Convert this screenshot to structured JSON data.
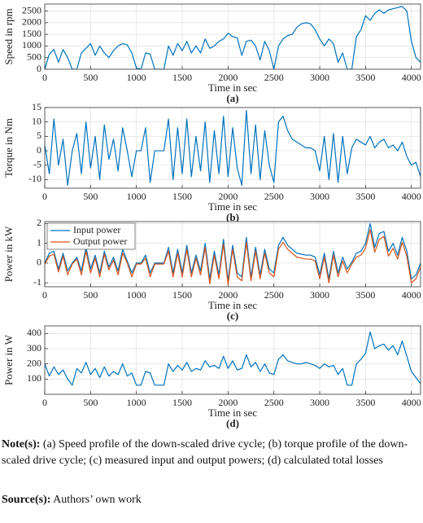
{
  "chart_data": [
    {
      "type": "line",
      "caption": "(a)",
      "y_label": "Speed in rpm",
      "x_label": "Time in sec",
      "x": [
        0,
        50,
        100,
        150,
        200,
        250,
        300,
        350,
        400,
        450,
        500,
        550,
        600,
        650,
        700,
        750,
        800,
        850,
        900,
        950,
        1000,
        1050,
        1100,
        1150,
        1200,
        1250,
        1300,
        1350,
        1400,
        1450,
        1500,
        1550,
        1600,
        1650,
        1700,
        1750,
        1800,
        1850,
        1900,
        1950,
        2000,
        2050,
        2100,
        2150,
        2200,
        2250,
        2300,
        2350,
        2400,
        2450,
        2500,
        2550,
        2600,
        2650,
        2700,
        2750,
        2800,
        2850,
        2900,
        2950,
        3000,
        3050,
        3100,
        3150,
        3200,
        3250,
        3300,
        3350,
        3400,
        3450,
        3500,
        3550,
        3600,
        3650,
        3700,
        3750,
        3800,
        3850,
        3900,
        3950,
        4000,
        4050,
        4100
      ],
      "values": [
        0,
        650,
        850,
        300,
        850,
        500,
        0,
        0,
        700,
        900,
        1100,
        600,
        1000,
        700,
        500,
        800,
        1000,
        1100,
        1050,
        700,
        50,
        0,
        700,
        650,
        0,
        0,
        0,
        1000,
        600,
        1100,
        800,
        1200,
        700,
        1000,
        700,
        1300,
        900,
        1000,
        1200,
        1300,
        1550,
        1400,
        1350,
        600,
        1200,
        1250,
        1000,
        400,
        1200,
        800,
        0,
        1000,
        1300,
        1450,
        1500,
        1800,
        1950,
        2000,
        1950,
        1700,
        1300,
        1000,
        1300,
        1100,
        300,
        700,
        0,
        0,
        1400,
        1700,
        2300,
        2100,
        2400,
        2550,
        2400,
        2550,
        2600,
        2650,
        2700,
        2500,
        1200,
        500,
        300
      ],
      "color": "#0072bd",
      "xlim": [
        0,
        4100
      ],
      "ylim": [
        0,
        2800
      ],
      "xticks": [
        0,
        500,
        1000,
        1500,
        2000,
        2500,
        3000,
        3500,
        4000
      ],
      "yticks": [
        0,
        500,
        1000,
        1500,
        2000,
        2500
      ],
      "grid": true
    },
    {
      "type": "line",
      "caption": "(b)",
      "y_label": "Torque in Nm",
      "x_label": "Time in sec",
      "x": [
        0,
        50,
        100,
        150,
        200,
        250,
        300,
        350,
        400,
        450,
        500,
        550,
        600,
        650,
        700,
        750,
        800,
        850,
        900,
        950,
        1000,
        1050,
        1100,
        1150,
        1200,
        1250,
        1300,
        1350,
        1400,
        1450,
        1500,
        1550,
        1600,
        1650,
        1700,
        1750,
        1800,
        1850,
        1900,
        1950,
        2000,
        2050,
        2100,
        2150,
        2200,
        2250,
        2300,
        2350,
        2400,
        2450,
        2500,
        2550,
        2600,
        2650,
        2700,
        2750,
        2800,
        2850,
        2900,
        2950,
        3000,
        3050,
        3100,
        3150,
        3200,
        3250,
        3300,
        3350,
        3400,
        3450,
        3500,
        3550,
        3600,
        3650,
        3700,
        3750,
        3800,
        3850,
        3900,
        3950,
        4000,
        4050,
        4100
      ],
      "values": [
        2,
        -8,
        11,
        -5,
        4,
        -12,
        0,
        6,
        -8,
        10,
        -6,
        5,
        -10,
        9,
        -3,
        4,
        -7,
        8,
        0,
        -9,
        0,
        0,
        8,
        -11,
        0,
        0,
        0,
        11,
        -10,
        8,
        -8,
        11,
        -9,
        5,
        -7,
        10,
        -11,
        7,
        -8,
        12,
        -9,
        8,
        -6,
        -12,
        14,
        -8,
        9,
        -10,
        7,
        -5,
        -11,
        10,
        12,
        7,
        4,
        3,
        2,
        1,
        1,
        0,
        -7,
        5,
        -10,
        6,
        -11,
        5,
        -8,
        1,
        4,
        3,
        2,
        5,
        1,
        3,
        4,
        1,
        2,
        0,
        3,
        -2,
        -5,
        -4,
        -9
      ],
      "color": "#0072bd",
      "xlim": [
        0,
        4100
      ],
      "ylim": [
        -13,
        15
      ],
      "xticks": [
        0,
        500,
        1000,
        1500,
        2000,
        2500,
        3000,
        3500,
        4000
      ],
      "yticks": [
        -10,
        -5,
        0,
        5,
        10,
        15
      ],
      "grid": true
    },
    {
      "type": "line",
      "caption": "(c)",
      "y_label": "Power in kW",
      "x_label": "Time in sec",
      "x": [
        0,
        50,
        100,
        150,
        200,
        250,
        300,
        350,
        400,
        450,
        500,
        550,
        600,
        650,
        700,
        750,
        800,
        850,
        900,
        950,
        1000,
        1050,
        1100,
        1150,
        1200,
        1250,
        1300,
        1350,
        1400,
        1450,
        1500,
        1550,
        1600,
        1650,
        1700,
        1750,
        1800,
        1850,
        1900,
        1950,
        2000,
        2050,
        2100,
        2150,
        2200,
        2250,
        2300,
        2350,
        2400,
        2450,
        2500,
        2550,
        2600,
        2650,
        2700,
        2750,
        2800,
        2850,
        2900,
        2950,
        3000,
        3050,
        3100,
        3150,
        3200,
        3250,
        3300,
        3350,
        3400,
        3450,
        3500,
        3550,
        3600,
        3650,
        3700,
        3750,
        3800,
        3850,
        3900,
        3950,
        4000,
        4050,
        4100
      ],
      "series": [
        {
          "name": "Input power",
          "color": "#0072bd",
          "values": [
            0,
            0.5,
            0.6,
            -0.3,
            0.5,
            -0.4,
            0,
            0.3,
            -0.4,
            0.8,
            -0.3,
            0.4,
            -0.5,
            0.6,
            -0.2,
            0.3,
            -0.4,
            0.7,
            0.1,
            -0.5,
            0,
            0,
            0.4,
            -0.5,
            0,
            0,
            0,
            0.8,
            -0.5,
            0.7,
            -0.5,
            0.9,
            -0.5,
            0.4,
            -0.4,
            1.0,
            -0.8,
            0.6,
            -0.6,
            1.2,
            -0.9,
            0.9,
            -0.5,
            -0.7,
            1.3,
            -0.7,
            0.8,
            -0.6,
            0.7,
            -0.3,
            -0.5,
            0.9,
            1.3,
            0.9,
            0.7,
            0.5,
            0.45,
            0.4,
            0.4,
            0.3,
            -0.6,
            0.5,
            -0.8,
            0.6,
            -0.5,
            0.3,
            -0.3,
            0.05,
            0.5,
            0.6,
            1.0,
            2.0,
            0.8,
            1.5,
            1.6,
            0.6,
            1.0,
            0.4,
            1.3,
            0.6,
            -0.8,
            -0.6,
            0.0
          ]
        },
        {
          "name": "Output power",
          "color": "#d95319",
          "values": [
            -0.05,
            0.35,
            0.45,
            -0.45,
            0.35,
            -0.6,
            -0.05,
            0.2,
            -0.6,
            0.6,
            -0.5,
            0.25,
            -0.7,
            0.45,
            -0.35,
            0.15,
            -0.6,
            0.5,
            0,
            -0.7,
            -0.05,
            -0.05,
            0.25,
            -0.7,
            -0.05,
            -0.05,
            -0.05,
            0.6,
            -0.7,
            0.5,
            -0.7,
            0.7,
            -0.7,
            0.25,
            -0.6,
            0.8,
            -1.05,
            0.4,
            -0.8,
            0.95,
            -1.1,
            0.7,
            -0.7,
            -0.9,
            1.05,
            -0.9,
            0.6,
            -0.8,
            0.5,
            -0.5,
            -0.7,
            0.7,
            1.05,
            0.7,
            0.5,
            0.3,
            0.25,
            0.2,
            0.2,
            0.1,
            -0.8,
            0.3,
            -1.0,
            0.4,
            -0.7,
            0.1,
            -0.5,
            -0.05,
            0.3,
            0.4,
            0.75,
            1.7,
            0.55,
            1.2,
            1.35,
            0.35,
            0.75,
            0.2,
            1.05,
            0.35,
            -1.0,
            -0.8,
            -0.2
          ]
        }
      ],
      "legend": "upper left",
      "xlim": [
        0,
        4100
      ],
      "ylim": [
        -1.2,
        2.1
      ],
      "xticks": [
        0,
        500,
        1000,
        1500,
        2000,
        2500,
        3000,
        3500,
        4000
      ],
      "yticks": [
        -1,
        0,
        1,
        2
      ],
      "grid": true
    },
    {
      "type": "line",
      "caption": "(d)",
      "y_label": "Power in W",
      "x_label": "Time in sec",
      "x": [
        0,
        50,
        100,
        150,
        200,
        250,
        300,
        350,
        400,
        450,
        500,
        550,
        600,
        650,
        700,
        750,
        800,
        850,
        900,
        950,
        1000,
        1050,
        1100,
        1150,
        1200,
        1250,
        1300,
        1350,
        1400,
        1450,
        1500,
        1550,
        1600,
        1650,
        1700,
        1750,
        1800,
        1850,
        1900,
        1950,
        2000,
        2050,
        2100,
        2150,
        2200,
        2250,
        2300,
        2350,
        2400,
        2450,
        2500,
        2550,
        2600,
        2650,
        2700,
        2750,
        2800,
        2850,
        2900,
        2950,
        3000,
        3050,
        3100,
        3150,
        3200,
        3250,
        3300,
        3350,
        3400,
        3450,
        3500,
        3550,
        3600,
        3650,
        3700,
        3750,
        3800,
        3850,
        3900,
        3950,
        4000,
        4050,
        4100
      ],
      "values": [
        200,
        120,
        180,
        130,
        160,
        100,
        60,
        170,
        140,
        210,
        130,
        170,
        110,
        180,
        120,
        150,
        130,
        200,
        120,
        140,
        60,
        60,
        150,
        140,
        60,
        60,
        60,
        200,
        150,
        190,
        160,
        210,
        150,
        170,
        160,
        220,
        180,
        190,
        170,
        250,
        170,
        220,
        160,
        170,
        260,
        180,
        210,
        150,
        200,
        140,
        130,
        230,
        260,
        220,
        210,
        200,
        200,
        210,
        200,
        190,
        170,
        200,
        180,
        190,
        130,
        170,
        60,
        60,
        200,
        230,
        270,
        410,
        300,
        320,
        330,
        290,
        320,
        260,
        350,
        250,
        150,
        110,
        70
      ],
      "color": "#0072bd",
      "xlim": [
        0,
        4100
      ],
      "ylim": [
        0,
        450
      ],
      "xticks": [
        0,
        500,
        1000,
        1500,
        2000,
        2500,
        3000,
        3500,
        4000
      ],
      "yticks": [
        100,
        200,
        300,
        400
      ],
      "grid": true
    }
  ],
  "note": {
    "label": "Note(s):",
    "text": "(a) Speed profile of the down-scaled drive cycle; (b) torque profile of the down-scaled drive cycle; (c) measured input and output powers; (d) calculated total losses"
  },
  "source": {
    "label": "Source(s):",
    "text": "Authors’ own work"
  }
}
